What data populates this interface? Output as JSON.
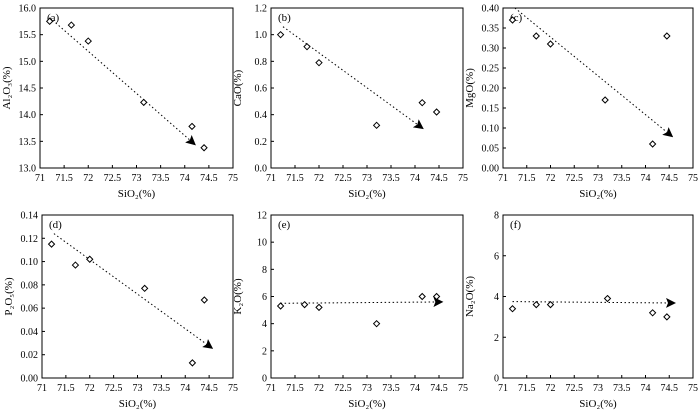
{
  "chart_data": [
    {
      "type": "scatter",
      "panel_label": "(a)",
      "xlabel": "SiO₂(%)",
      "ylabel": "Al₂O₃(%)",
      "xlim": [
        71,
        75
      ],
      "ylim": [
        13.0,
        16.0
      ],
      "xticks": [
        "71",
        "71.5",
        "72",
        "72.5",
        "73",
        "73.5",
        "74",
        "74.5",
        "75"
      ],
      "yticks": [
        "13.0",
        "13.5",
        "14.0",
        "14.5",
        "15.0",
        "15.5",
        "16.0"
      ],
      "x": [
        71.2,
        71.65,
        72.0,
        73.15,
        74.15,
        74.4
      ],
      "y": [
        15.75,
        15.68,
        15.38,
        14.23,
        13.78,
        13.38
      ],
      "trend": {
        "from": [
          71.2,
          15.82
        ],
        "to": [
          74.2,
          13.45
        ]
      }
    },
    {
      "type": "scatter",
      "panel_label": "(b)",
      "xlabel": "SiO₂(%)",
      "ylabel": "CaO(%)",
      "xlim": [
        71,
        75
      ],
      "ylim": [
        0.0,
        1.2
      ],
      "xticks": [
        "71",
        "71.5",
        "72",
        "72.5",
        "73",
        "73.5",
        "74",
        "74.5",
        "75"
      ],
      "yticks": [
        "0.0",
        "0.2",
        "0.4",
        "0.6",
        "0.8",
        "1.0",
        "1.2"
      ],
      "x": [
        71.2,
        71.75,
        72.0,
        73.2,
        74.15,
        74.45
      ],
      "y": [
        1.0,
        0.91,
        0.79,
        0.32,
        0.49,
        0.42
      ],
      "trend": {
        "from": [
          71.25,
          1.06
        ],
        "to": [
          74.15,
          0.3
        ]
      }
    },
    {
      "type": "scatter",
      "panel_label": "(c)",
      "xlabel": "SiO₂(%)",
      "ylabel": "MgO(%)",
      "xlim": [
        71,
        75
      ],
      "ylim": [
        0.0,
        0.4
      ],
      "xticks": [
        "71",
        "71.5",
        "72",
        "72.5",
        "73",
        "73.5",
        "74",
        "74.5",
        "75"
      ],
      "yticks": [
        "0.00",
        "0.05",
        "0.10",
        "0.15",
        "0.20",
        "0.25",
        "0.30",
        "0.35",
        "0.40"
      ],
      "x": [
        71.2,
        71.7,
        72.0,
        73.15,
        74.15,
        74.45
      ],
      "y": [
        0.37,
        0.33,
        0.31,
        0.17,
        0.06,
        0.33
      ],
      "trend": {
        "from": [
          71.25,
          0.4
        ],
        "to": [
          74.55,
          0.08
        ]
      }
    },
    {
      "type": "scatter",
      "panel_label": "(d)",
      "xlabel": "SiO₂(%)",
      "ylabel": "P₂O₅(%)",
      "xlim": [
        71,
        75
      ],
      "ylim": [
        0.0,
        0.14
      ],
      "xticks": [
        "71",
        "71.5",
        "72",
        "72.5",
        "73",
        "73.5",
        "74",
        "74.5",
        "75"
      ],
      "yticks": [
        "0.00",
        "0.02",
        "0.04",
        "0.06",
        "0.08",
        "0.10",
        "0.12",
        "0.14"
      ],
      "x": [
        71.2,
        71.7,
        72.0,
        73.15,
        74.15,
        74.4
      ],
      "y": [
        0.115,
        0.097,
        0.102,
        0.077,
        0.013,
        0.067
      ],
      "trend": {
        "from": [
          71.25,
          0.124
        ],
        "to": [
          74.55,
          0.026
        ]
      }
    },
    {
      "type": "scatter",
      "panel_label": "(e)",
      "xlabel": "SiO₂(%)",
      "ylabel": "K₂O(%)",
      "xlim": [
        71,
        75
      ],
      "ylim": [
        0,
        12
      ],
      "xticks": [
        "71",
        "71.5",
        "72",
        "72.5",
        "73",
        "73.5",
        "74",
        "74.5",
        "75"
      ],
      "yticks": [
        "0",
        "2",
        "4",
        "6",
        "8",
        "10",
        "12"
      ],
      "x": [
        71.2,
        71.7,
        72.0,
        73.2,
        74.15,
        74.45
      ],
      "y": [
        5.3,
        5.4,
        5.2,
        4.0,
        6.0,
        6.0
      ],
      "trend": {
        "from": [
          71.2,
          5.5
        ],
        "to": [
          74.55,
          5.6
        ]
      }
    },
    {
      "type": "scatter",
      "panel_label": "(f)",
      "xlabel": "SiO₂(%)",
      "ylabel": "Na₂O(%)",
      "xlim": [
        71,
        75
      ],
      "ylim": [
        0,
        8
      ],
      "xticks": [
        "71",
        "71.5",
        "72",
        "72.5",
        "73",
        "73.5",
        "74",
        "74.5",
        "75"
      ],
      "yticks": [
        "0",
        "2",
        "4",
        "6",
        "8"
      ],
      "x": [
        71.2,
        71.7,
        72.0,
        73.2,
        74.15,
        74.45
      ],
      "y": [
        3.4,
        3.6,
        3.6,
        3.9,
        3.2,
        3.0
      ],
      "trend": {
        "from": [
          71.2,
          3.75
        ],
        "to": [
          74.6,
          3.68
        ]
      }
    }
  ]
}
